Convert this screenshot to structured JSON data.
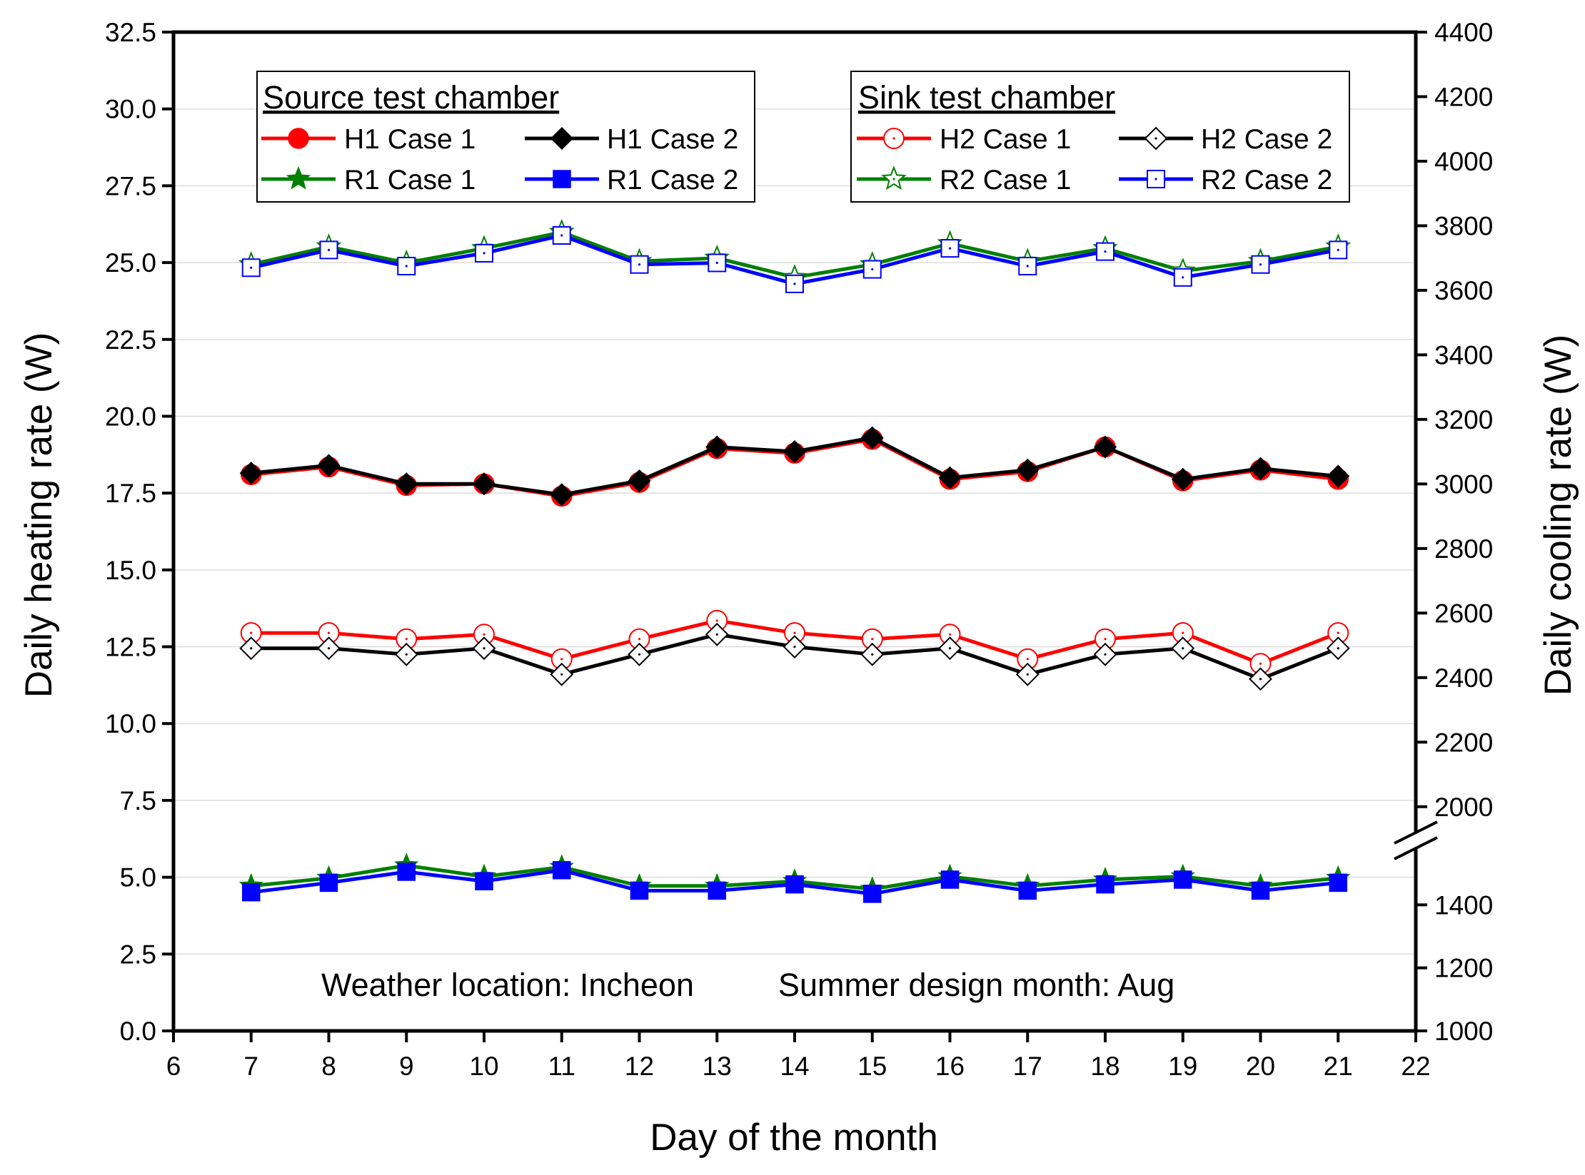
{
  "chart_data": {
    "type": "line",
    "xlabel": "Day of the month",
    "ylabel_left": "Daily heating rate (W)",
    "ylabel_right": "Daily cooling rate (W)",
    "xlim": [
      6,
      22
    ],
    "x_ticks": [
      "6",
      "7",
      "8",
      "9",
      "10",
      "11",
      "12",
      "13",
      "14",
      "15",
      "16",
      "17",
      "18",
      "19",
      "20",
      "21",
      "22"
    ],
    "ylim_left": [
      0,
      32.5
    ],
    "y_left_ticks": [
      "0.0",
      "2.5",
      "5.0",
      "7.5",
      "10.0",
      "12.5",
      "15.0",
      "17.5",
      "20.0",
      "22.5",
      "25.0",
      "27.5",
      "30.0",
      "32.5"
    ],
    "y_right_axis_break": true,
    "y_right_lower_segment": {
      "range": [
        1000,
        1600
      ],
      "ticks": [
        "1000",
        "1200",
        "1400"
      ]
    },
    "y_right_upper_segment": {
      "range": [
        1900,
        4400
      ],
      "ticks": [
        "2000",
        "2200",
        "2400",
        "2600",
        "2800",
        "3000",
        "3200",
        "3400",
        "3600",
        "3800",
        "4000",
        "4200",
        "4400"
      ]
    },
    "grid": "horizontal",
    "x": [
      7,
      8,
      9,
      10,
      11,
      12,
      13,
      14,
      15,
      16,
      17,
      18,
      19,
      20,
      21
    ],
    "series": [
      {
        "name": "H1 Case 1",
        "axis": "left",
        "color": "#ff0000",
        "marker": "circle-filled",
        "values": [
          18.1,
          18.35,
          17.75,
          17.8,
          17.4,
          17.85,
          18.95,
          18.8,
          19.25,
          17.95,
          18.2,
          19.0,
          17.9,
          18.25,
          17.95
        ]
      },
      {
        "name": "H1 Case 2",
        "axis": "left",
        "color": "#000000",
        "marker": "diamond-filled",
        "values": [
          18.15,
          18.4,
          17.8,
          17.8,
          17.45,
          17.9,
          19.0,
          18.85,
          19.3,
          18.0,
          18.25,
          19.0,
          17.95,
          18.3,
          18.05
        ]
      },
      {
        "name": "R1 Case 1",
        "axis": "right",
        "color": "#008000",
        "marker": "star-filled",
        "values": [
          1460,
          1485,
          1525,
          1490,
          1520,
          1460,
          1460,
          1475,
          1450,
          1490,
          1460,
          1480,
          1490,
          1460,
          1485
        ]
      },
      {
        "name": "R1 Case 2",
        "axis": "right",
        "color": "#0000ff",
        "marker": "square-filled",
        "values": [
          1440,
          1470,
          1505,
          1475,
          1510,
          1445,
          1445,
          1465,
          1435,
          1480,
          1445,
          1465,
          1480,
          1445,
          1470
        ]
      },
      {
        "name": "H2 Case 1",
        "axis": "left",
        "color": "#ff0000",
        "marker": "circle-open",
        "values": [
          12.95,
          12.95,
          12.75,
          12.9,
          12.1,
          12.75,
          13.35,
          12.95,
          12.75,
          12.9,
          12.1,
          12.75,
          12.95,
          11.95,
          12.95
        ]
      },
      {
        "name": "H2 Case 2",
        "axis": "left",
        "color": "#000000",
        "marker": "diamond-open",
        "values": [
          12.45,
          12.45,
          12.25,
          12.45,
          11.6,
          12.25,
          12.9,
          12.5,
          12.25,
          12.45,
          11.6,
          12.25,
          12.45,
          11.45,
          12.45
        ]
      },
      {
        "name": "R2 Case 1",
        "axis": "right",
        "color": "#008000",
        "marker": "star-open",
        "values": [
          3680,
          3735,
          3685,
          3730,
          3780,
          3690,
          3700,
          3640,
          3680,
          3745,
          3690,
          3730,
          3660,
          3690,
          3735
        ]
      },
      {
        "name": "R2 Case 2",
        "axis": "right",
        "color": "#0000ff",
        "marker": "square-open",
        "values": [
          3670,
          3725,
          3675,
          3715,
          3770,
          3680,
          3685,
          3620,
          3665,
          3730,
          3675,
          3720,
          3640,
          3680,
          3725
        ]
      }
    ],
    "legends": [
      {
        "title": "Source test chamber",
        "placement": "top-left",
        "entries": [
          "H1 Case 1",
          "H1 Case 2",
          "R1 Case 1",
          "R1 Case 2"
        ]
      },
      {
        "title": "Sink test chamber",
        "placement": "top-right",
        "entries": [
          "H2 Case 1",
          "H2 Case 2",
          "R2 Case 1",
          "R2 Case 2"
        ]
      }
    ],
    "annotations": [
      "Weather location: Incheon",
      "Summer design month: Aug"
    ]
  }
}
